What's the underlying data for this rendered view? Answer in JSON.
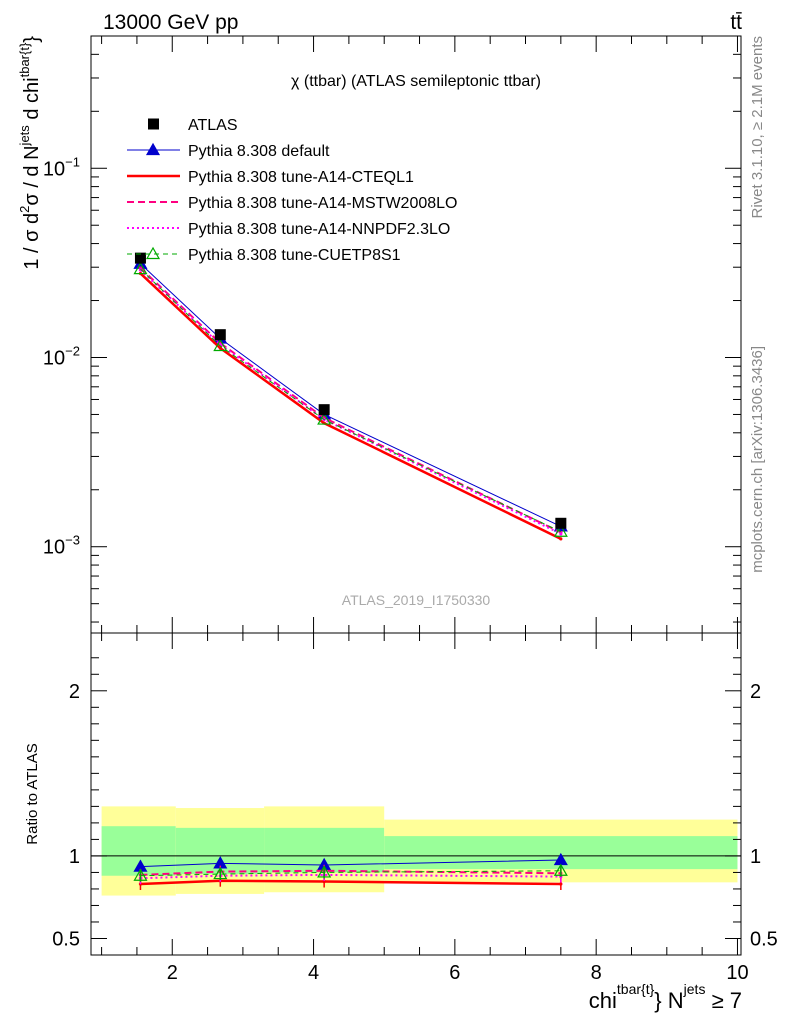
{
  "header": {
    "left": "13000 GeV pp",
    "right": "tt̄"
  },
  "side_labels": {
    "rivet": "Rivet 3.1.10, ≥ 2.1M events",
    "mcplots": "mcplots.cern.ch [arXiv:1306.3436]"
  },
  "chart_data": [
    {
      "type": "line",
      "title": "χ (ttbar) (ATLAS semileptonic ttbar)",
      "watermark": "ATLAS_2019_I1750330",
      "ylabel": {
        "main": "1 / σ d",
        "sup1": "2",
        "mid": "σ / d N",
        "sup2": "jets",
        "tail": " d chi",
        "sup3": "tbar{t}"
      },
      "yscale": "log",
      "ylim": [
        0.00035,
        0.5
      ],
      "xlim": [
        0.85,
        10.05
      ],
      "y_ticks": [
        {
          "value": 0.1,
          "label": "10",
          "exp": "−1"
        },
        {
          "value": 0.01,
          "label": "10",
          "exp": "−2"
        },
        {
          "value": 0.001,
          "label": "10",
          "exp": "−3"
        }
      ],
      "legend_position": "top-left",
      "x": [
        1.55,
        2.68,
        4.15,
        7.5
      ],
      "series": [
        {
          "name": "ATLAS",
          "color": "#000000",
          "style": "data",
          "values": [
            0.0335,
            0.0132,
            0.0053,
            0.00133
          ]
        },
        {
          "name": "Pythia 8.308 default",
          "color": "#0000cc",
          "style": "solid-triangle",
          "values": [
            0.0313,
            0.0126,
            0.005,
            0.00128
          ]
        },
        {
          "name": "Pythia 8.308 tune-A14-CTEQL1",
          "color": "#ff0000",
          "style": "solid-thick",
          "values": [
            0.0278,
            0.0112,
            0.0045,
            0.0011
          ]
        },
        {
          "name": "Pythia 8.308 tune-A14-MSTW2008LO",
          "color": "#ff0080",
          "style": "dashed",
          "values": [
            0.0297,
            0.0119,
            0.0048,
            0.00119
          ]
        },
        {
          "name": "Pythia 8.308 tune-A14-NNPDF2.3LO",
          "color": "#ff00ff",
          "style": "dotted",
          "values": [
            0.029,
            0.0117,
            0.0047,
            0.00117
          ]
        },
        {
          "name": "Pythia 8.308 tune-CUETP8S1",
          "color": "#00aa00",
          "style": "dashed-open-triangle",
          "values": [
            0.0293,
            0.0115,
            0.0047,
            0.0012
          ]
        }
      ]
    },
    {
      "type": "line",
      "ylabel": "Ratio to ATLAS",
      "xlabel": {
        "main": "chi",
        "sup1": "tbar{t}",
        "mid": "} N",
        "sup2": "jets",
        "tail": " ≥ 7"
      },
      "xlim": [
        0.85,
        10.05
      ],
      "ylim": [
        0.4,
        2.35
      ],
      "x_ticks": [
        2,
        4,
        6,
        8,
        10
      ],
      "y_ticks": [
        {
          "value": 0.5,
          "label": "0.5"
        },
        {
          "value": 1,
          "label": "1"
        },
        {
          "value": 2,
          "label": "2"
        }
      ],
      "bins": [
        [
          1.0,
          2.05
        ],
        [
          2.05,
          3.3
        ],
        [
          3.3,
          5.0
        ],
        [
          5.0,
          10.0
        ]
      ],
      "band_green": [
        [
          0.88,
          1.18
        ],
        [
          0.89,
          1.17
        ],
        [
          0.9,
          1.17
        ],
        [
          0.92,
          1.12
        ]
      ],
      "band_yellow": [
        [
          0.76,
          1.3
        ],
        [
          0.77,
          1.29
        ],
        [
          0.78,
          1.3
        ],
        [
          0.84,
          1.22
        ]
      ],
      "x": [
        1.55,
        2.68,
        4.15,
        7.5
      ],
      "series": [
        {
          "name": "Pythia 8.308 default",
          "color": "#0000cc",
          "values": [
            0.935,
            0.955,
            0.945,
            0.975
          ]
        },
        {
          "name": "Pythia 8.308 tune-A14-CTEQL1",
          "color": "#ff0000",
          "values": [
            0.83,
            0.85,
            0.845,
            0.83
          ]
        },
        {
          "name": "Pythia 8.308 tune-A14-MSTW2008LO",
          "color": "#ff0080",
          "values": [
            0.885,
            0.905,
            0.91,
            0.895
          ]
        },
        {
          "name": "Pythia 8.308 tune-A14-NNPDF2.3LO",
          "color": "#ff00ff",
          "values": [
            0.865,
            0.88,
            0.885,
            0.875
          ]
        },
        {
          "name": "Pythia 8.308 tune-CUETP8S1",
          "color": "#00aa00",
          "values": [
            0.88,
            0.89,
            0.9,
            0.91
          ]
        }
      ]
    }
  ]
}
